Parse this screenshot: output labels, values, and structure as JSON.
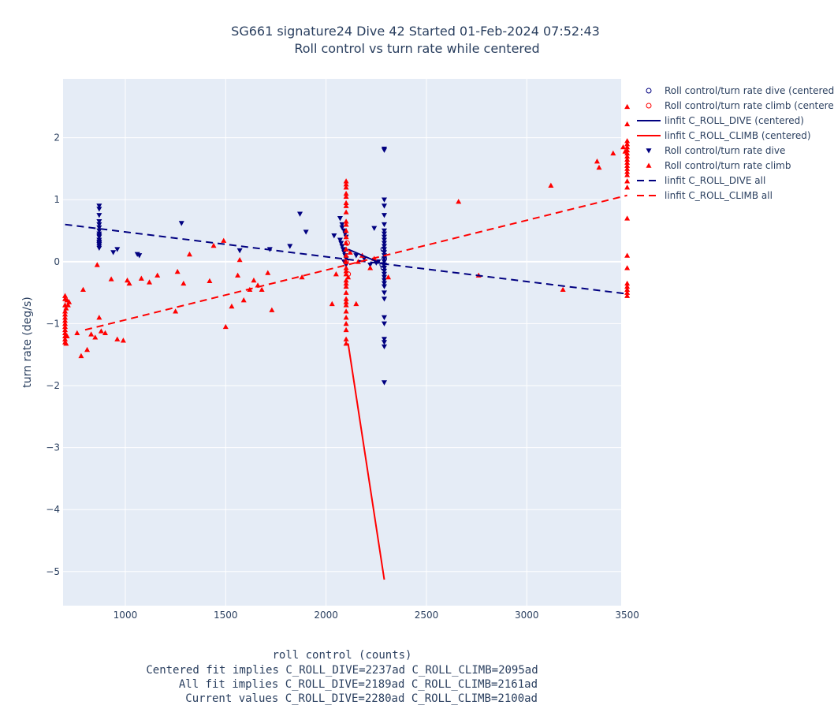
{
  "chart_data": {
    "type": "scatter",
    "title": "SG661 signature24 Dive 42 Started 01-Feb-2024 07:52:43",
    "subtitle": "Roll control vs turn rate while centered",
    "xlabel_lines": [
      "roll control (counts)",
      "Centered fit implies C_ROLL_DIVE=2237ad C_ROLL_CLIMB=2095ad",
      "All fit implies C_ROLL_DIVE=2189ad C_ROLL_CLIMB=2161ad",
      "Current values C_ROLL_DIVE=2280ad C_ROLL_CLIMB=2100ad"
    ],
    "ylabel": "turn rate (deg/s)",
    "xlim": [
      690,
      3470
    ],
    "ylim": [
      -5.55,
      2.95
    ],
    "xticks": [
      1000,
      1500,
      2000,
      2500,
      3000,
      3500
    ],
    "xtick_labels": [
      "1000",
      "1500",
      "2000",
      "2500",
      "3000",
      "3500"
    ],
    "yticks": [
      -5,
      -4,
      -3,
      -2,
      -1,
      0,
      1,
      2
    ],
    "ytick_labels": [
      "−5",
      "−4",
      "−3",
      "−2",
      "−1",
      "0",
      "1",
      "2"
    ],
    "grid": true,
    "legend_position": "right",
    "colors": {
      "dive": "#000080",
      "climb": "#ff0000",
      "plot_bg": "#e5ecf6",
      "grid": "#ffffff"
    },
    "series": [
      {
        "name": "Roll control/turn rate dive (centered)",
        "kind": "markers",
        "marker": "circle-open",
        "color": "#000080",
        "x": [
          2285,
          2290,
          2280,
          2285
        ],
        "y": [
          0.2,
          0.05,
          -0.05,
          -0.1
        ]
      },
      {
        "name": "Roll control/turn rate climb (centered)",
        "kind": "markers",
        "marker": "circle-open",
        "color": "#ff0000",
        "x": [
          2105,
          2110,
          2100
        ],
        "y": [
          0.3,
          -0.2,
          0.0
        ]
      },
      {
        "name": "linfit C_ROLL_DIVE (centered)",
        "kind": "line",
        "dash": "solid",
        "color": "#000080",
        "x": [
          2110,
          2290
        ],
        "y": [
          0.2,
          -0.05
        ]
      },
      {
        "name": "linfit C_ROLL_CLIMB (centered)",
        "kind": "line",
        "dash": "solid",
        "color": "#ff0000",
        "x": [
          2110,
          2290
        ],
        "y": [
          -1.32,
          -5.13
        ]
      },
      {
        "name": "Roll control/turn rate dive",
        "kind": "markers",
        "marker": "triangle-down",
        "color": "#000080",
        "x": [
          870,
          870,
          870,
          870,
          870,
          870,
          870,
          870,
          870,
          870,
          870,
          870,
          870,
          870,
          870,
          870,
          940,
          960,
          1060,
          1070,
          1280,
          1570,
          1720,
          1820,
          1870,
          1900,
          2040,
          2070,
          2080,
          2090,
          2095,
          2100,
          2070,
          2075,
          2080,
          2085,
          2090,
          2095,
          2100,
          2080,
          2090,
          2100,
          2150,
          2190,
          2220,
          2240,
          2250,
          2260,
          2290,
          2290,
          2290,
          2290,
          2290,
          2290,
          2290,
          2290,
          2290,
          2290,
          2290,
          2290,
          2290,
          2290,
          2290,
          2290,
          2290,
          2290,
          2290,
          2290,
          2290,
          2290,
          2290,
          2290,
          2290,
          2290,
          2290,
          2290,
          2290,
          2290,
          2290,
          2290,
          2290
        ],
        "y": [
          0.9,
          0.85,
          0.75,
          0.65,
          0.6,
          0.55,
          0.5,
          0.45,
          0.4,
          0.35,
          0.32,
          0.28,
          0.25,
          0.22,
          0.3,
          0.42,
          0.15,
          0.2,
          0.12,
          0.1,
          0.62,
          0.18,
          0.2,
          0.25,
          0.77,
          0.48,
          0.42,
          0.7,
          0.6,
          0.5,
          0.45,
          0.4,
          0.35,
          0.3,
          0.25,
          0.2,
          0.15,
          0.1,
          0.05,
          0.55,
          0.0,
          -0.05,
          0.1,
          0.05,
          -0.05,
          0.54,
          -0.02,
          0.0,
          1.82,
          1.8,
          1.0,
          0.9,
          0.75,
          0.6,
          0.5,
          0.45,
          0.4,
          0.35,
          0.3,
          0.25,
          0.2,
          0.15,
          0.1,
          0.05,
          0.0,
          -0.05,
          -0.1,
          -0.15,
          -0.2,
          -0.25,
          -0.3,
          -0.35,
          -0.4,
          -0.5,
          -0.6,
          -0.9,
          -1.0,
          -1.25,
          -1.3,
          -1.37,
          -1.95
        ]
      },
      {
        "name": "Roll control/turn rate climb",
        "kind": "markers",
        "marker": "triangle-up",
        "color": "#ff0000",
        "x": [
          700,
          700,
          700,
          700,
          700,
          700,
          700,
          700,
          700,
          700,
          700,
          700,
          700,
          700,
          710,
          715,
          720,
          705,
          710,
          705,
          760,
          780,
          790,
          810,
          830,
          850,
          860,
          870,
          880,
          900,
          930,
          960,
          990,
          1010,
          1020,
          1080,
          1120,
          1160,
          1250,
          1260,
          1290,
          1320,
          1420,
          1440,
          1490,
          1500,
          1530,
          1560,
          1570,
          1590,
          1620,
          1640,
          1660,
          1680,
          1710,
          1730,
          1880,
          2030,
          2050,
          2100,
          2100,
          2100,
          2100,
          2100,
          2100,
          2100,
          2100,
          2100,
          2100,
          2100,
          2100,
          2100,
          2100,
          2100,
          2100,
          2100,
          2100,
          2100,
          2100,
          2100,
          2100,
          2100,
          2100,
          2100,
          2100,
          2100,
          2100,
          2100,
          2100,
          2100,
          2100,
          2100,
          2110,
          2120,
          2150,
          2160,
          2180,
          2220,
          2240,
          2310,
          2660,
          2760,
          3120,
          3180,
          3350,
          3360,
          3430,
          3480,
          3490,
          3500,
          3500,
          3500,
          3500,
          3500,
          3500,
          3500,
          3500,
          3500,
          3500,
          3500,
          3500,
          3500,
          3500,
          3500,
          3500,
          3500,
          3500,
          3500,
          3500,
          3500,
          3500,
          3500,
          3500
        ],
        "y": [
          -0.55,
          -0.6,
          -0.7,
          -0.8,
          -0.85,
          -0.9,
          -0.95,
          -1.0,
          -1.05,
          -1.1,
          -1.15,
          -1.2,
          -1.25,
          -1.3,
          -0.62,
          -0.7,
          -0.65,
          -1.32,
          -1.2,
          -0.75,
          -1.15,
          -1.52,
          -0.45,
          -1.42,
          -1.17,
          -1.22,
          -0.05,
          -0.9,
          -1.12,
          -1.15,
          -0.28,
          -1.25,
          -1.27,
          -0.3,
          -0.35,
          -0.27,
          -0.33,
          -0.22,
          -0.8,
          -0.16,
          -0.35,
          0.12,
          -0.31,
          0.26,
          0.34,
          -1.05,
          -0.72,
          -0.22,
          0.03,
          -0.62,
          -0.45,
          -0.3,
          -0.38,
          -0.45,
          -0.18,
          -0.78,
          -0.25,
          -0.68,
          -0.2,
          1.3,
          1.25,
          1.2,
          1.05,
          0.95,
          0.8,
          0.65,
          0.5,
          0.4,
          0.3,
          0.2,
          0.1,
          0.0,
          -0.1,
          -0.2,
          -0.3,
          -0.4,
          -0.5,
          -0.6,
          -0.7,
          -0.8,
          -0.9,
          -1.0,
          -1.1,
          -1.25,
          -1.32,
          1.1,
          0.9,
          0.6,
          0.2,
          -0.15,
          -0.35,
          -0.65,
          -0.25,
          0.15,
          -0.68,
          0.0,
          0.1,
          -0.1,
          0.05,
          -0.25,
          0.97,
          -0.22,
          1.23,
          -0.45,
          1.62,
          1.52,
          1.75,
          1.85,
          1.78,
          2.5,
          2.22,
          1.95,
          1.9,
          1.85,
          1.8,
          1.75,
          1.7,
          1.65,
          1.6,
          1.55,
          1.5,
          1.45,
          1.4,
          1.3,
          1.2,
          0.7,
          0.1,
          -0.1,
          -0.35,
          -0.4,
          -0.45,
          -0.5,
          -0.55
        ]
      },
      {
        "name": "linfit C_ROLL_DIVE all",
        "kind": "line",
        "dash": "dash",
        "color": "#000080",
        "x": [
          700,
          3500
        ],
        "y": [
          0.6,
          -0.52
        ]
      },
      {
        "name": "linfit C_ROLL_CLIMB all",
        "kind": "line",
        "dash": "dash",
        "color": "#ff0000",
        "x": [
          800,
          3500
        ],
        "y": [
          -1.1,
          1.07
        ]
      }
    ]
  }
}
